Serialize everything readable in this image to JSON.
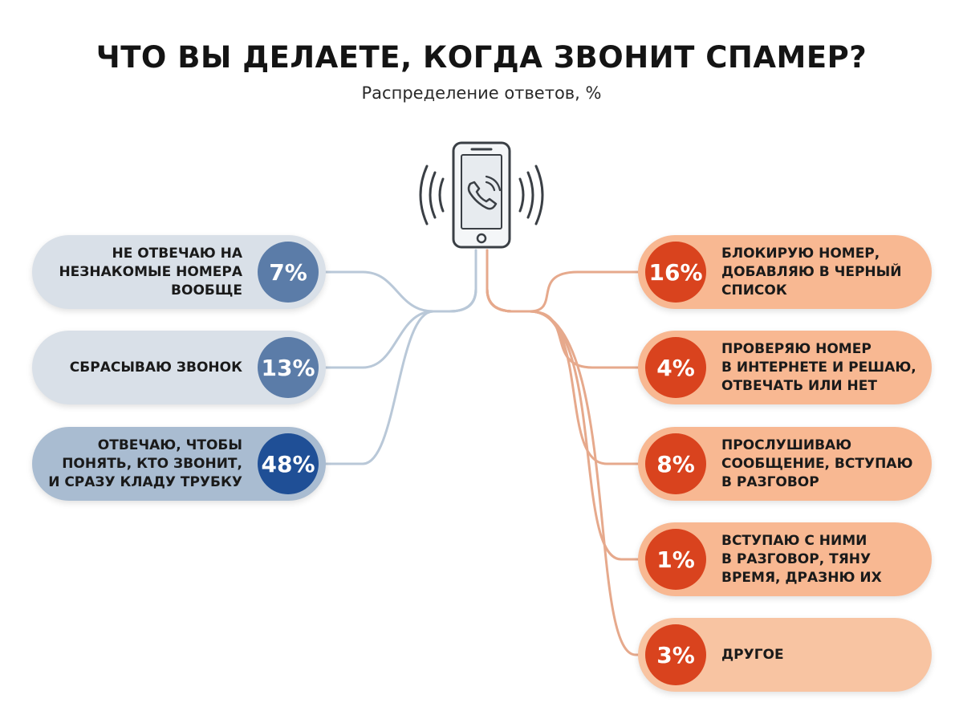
{
  "title": "ЧТО ВЫ ДЕЛАЕТЕ, КОГДА ЗВОНИТ СПАМЕР?",
  "subtitle": "Распределение ответов, %",
  "icons": {
    "center": "ringing-phone-icon"
  },
  "colors": {
    "left_pill": "#d9e0e8",
    "left_pill_strong": "#a9bcd1",
    "left_circle": "#5b7ca8",
    "left_circle_strong": "#1f4f96",
    "right_pill": "#f8b892",
    "right_circle": "#d9431e",
    "left_links": "#b9c8d8",
    "right_links": "#e6a98c"
  },
  "chart_data": {
    "type": "infographic-percentages",
    "title": "ЧТО ВЫ ДЕЛАЕТЕ, КОГДА ЗВОНИТ СПАМЕР?",
    "subtitle": "Распределение ответов, %",
    "unit": "%",
    "left": [
      {
        "label": "НЕ ОТВЕЧАЮ НА НЕЗНАКОМЫЕ НОМЕРА ВООБЩЕ",
        "lines": [
          "НЕ ОТВЕЧАЮ НА",
          "НЕЗНАКОМЫЕ НОМЕРА",
          "ВООБЩЕ"
        ],
        "value": 7,
        "value_label": "7%"
      },
      {
        "label": "СБРАСЫВАЮ ЗВОНОК",
        "lines": [
          "СБРАСЫВАЮ ЗВОНОК"
        ],
        "value": 13,
        "value_label": "13%"
      },
      {
        "label": "ОТВЕЧАЮ, ЧТОБЫ ПОНЯТЬ, КТО ЗВОНИТ, И СРАЗУ КЛАДУ ТРУБКУ",
        "lines": [
          "ОТВЕЧАЮ, ЧТОБЫ",
          "ПОНЯТЬ, КТО ЗВОНИТ,",
          "И СРАЗУ КЛАДУ ТРУБКУ"
        ],
        "value": 48,
        "value_label": "48%"
      }
    ],
    "right": [
      {
        "label": "БЛОКИРУЮ НОМЕР, ДОБАВЛЯЮ В ЧЕРНЫЙ СПИСОК",
        "lines": [
          "БЛОКИРУЮ НОМЕР,",
          "ДОБАВЛЯЮ В ЧЕРНЫЙ",
          "СПИСОК"
        ],
        "value": 16,
        "value_label": "16%"
      },
      {
        "label": "ПРОВЕРЯЮ НОМЕР В ИНТЕРНЕТЕ И РЕШАЮ, ОТВЕЧАТЬ ИЛИ НЕТ",
        "lines": [
          "ПРОВЕРЯЮ НОМЕР",
          "В ИНТЕРНЕТЕ И РЕШАЮ,",
          "ОТВЕЧАТЬ ИЛИ НЕТ"
        ],
        "value": 4,
        "value_label": "4%"
      },
      {
        "label": "ПРОСЛУШИВАЮ СООБЩЕНИЕ, ВСТУПАЮ В РАЗГОВОР",
        "lines": [
          "ПРОСЛУШИВАЮ",
          "СООБЩЕНИЕ, ВСТУПАЮ",
          "В РАЗГОВОР"
        ],
        "value": 8,
        "value_label": "8%"
      },
      {
        "label": "ВСТУПАЮ С НИМИ В РАЗГОВОР, ТЯНУ ВРЕМЯ, ДРАЗНЮ ИХ",
        "lines": [
          "ВСТУПАЮ С НИМИ",
          "В РАЗГОВОР, ТЯНУ",
          "ВРЕМЯ, ДРАЗНЮ ИХ"
        ],
        "value": 1,
        "value_label": "1%"
      },
      {
        "label": "ДРУГОЕ",
        "lines": [
          "ДРУГОЕ"
        ],
        "value": 3,
        "value_label": "3%"
      }
    ]
  }
}
